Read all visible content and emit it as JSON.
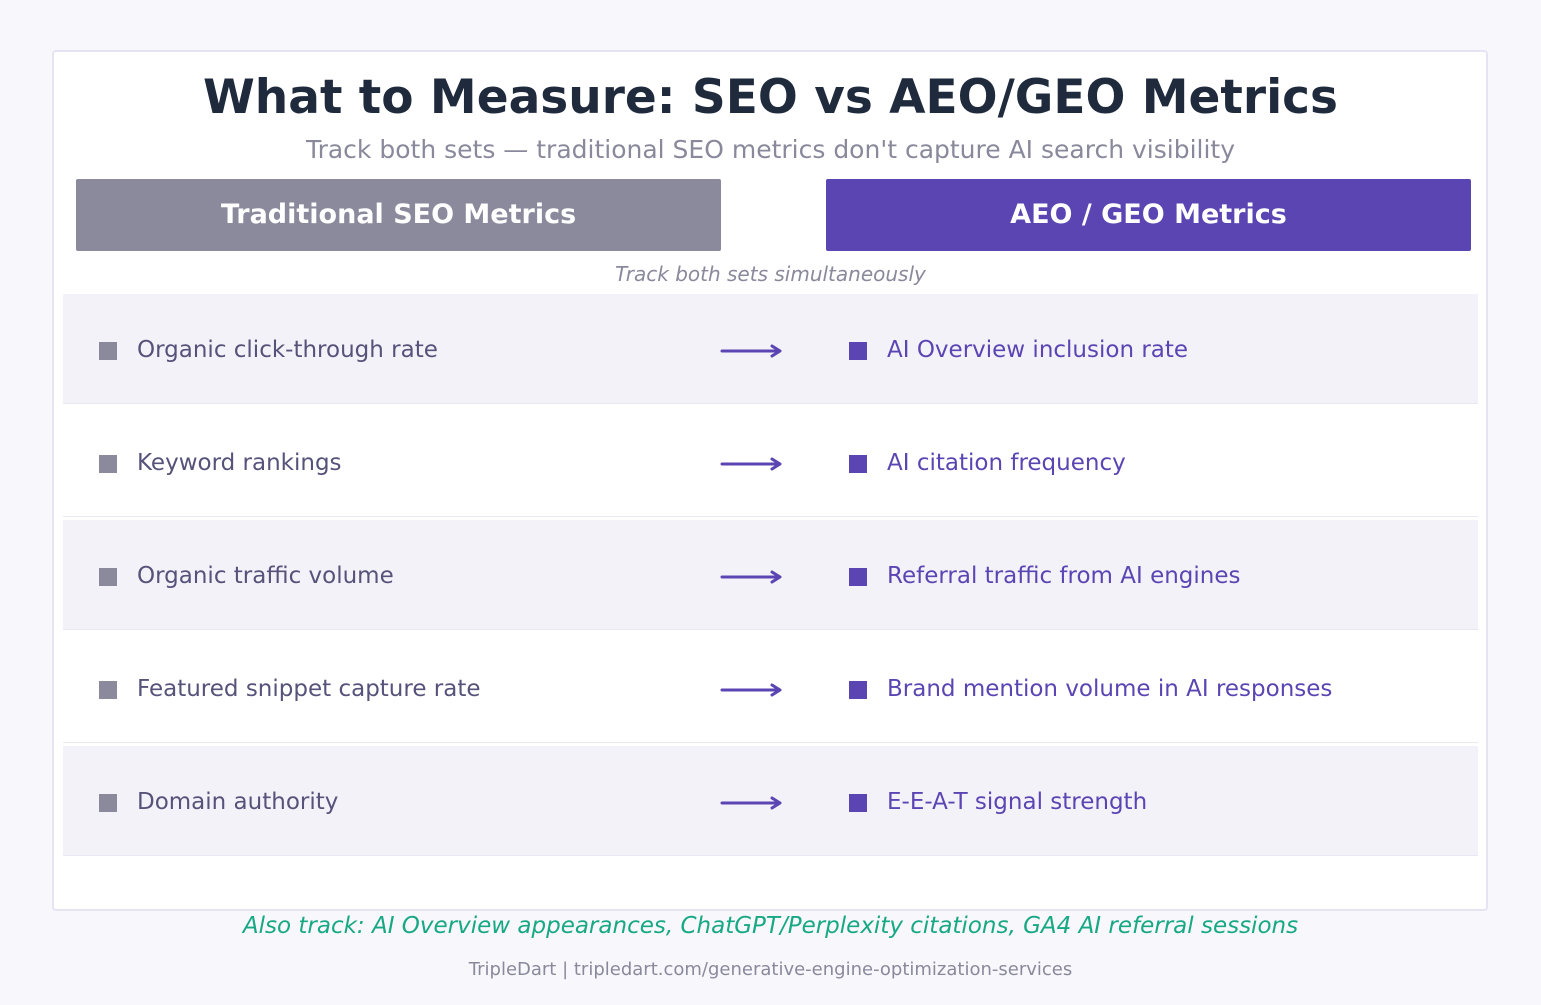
{
  "header": {
    "title": "What to Measure: SEO vs AEO/GEO Metrics",
    "subtitle": "Track both sets — traditional SEO metrics don't capture AI search visibility"
  },
  "columns": {
    "left_label": "Traditional SEO Metrics",
    "right_label": "AEO / GEO Metrics",
    "note": "Track both sets simultaneously"
  },
  "rows": [
    {
      "seo": "Organic click-through rate",
      "aeo": "AI Overview inclusion rate"
    },
    {
      "seo": "Keyword rankings",
      "aeo": "AI citation frequency"
    },
    {
      "seo": "Organic traffic volume",
      "aeo": "Referral traffic from AI engines"
    },
    {
      "seo": "Featured snippet capture rate",
      "aeo": "Brand mention volume in AI responses"
    },
    {
      "seo": "Domain authority",
      "aeo": "E-E-A-T signal strength"
    }
  ],
  "footer": {
    "also_track": "Also track: AI Overview appearances, ChatGPT/Perplexity citations, GA4 AI referral sessions",
    "credit": "TripleDart  |  tripledart.com/generative-engine-optimization-services"
  },
  "colors": {
    "seo_accent": "#8b8a9c",
    "aeo_accent": "#5b45b3",
    "highlight": "#17a884"
  },
  "icons": {
    "bullet": "square-bullet-icon",
    "connector": "arrow-right-icon"
  }
}
